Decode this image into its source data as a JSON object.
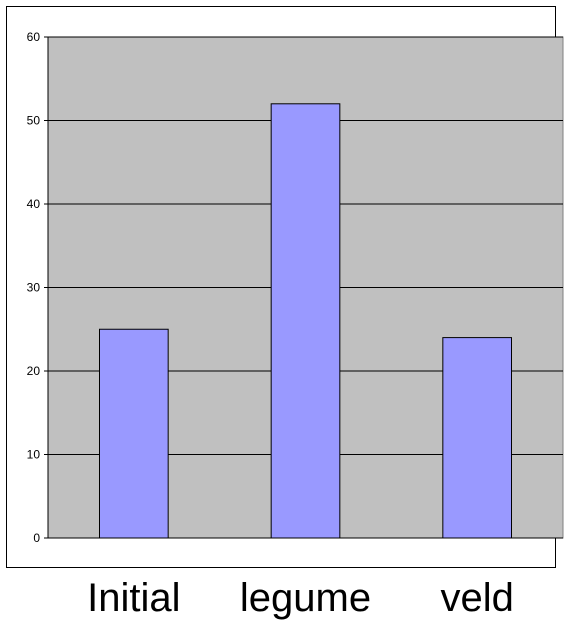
{
  "chart_data": {
    "type": "bar",
    "categories": [
      "Initial",
      "legume",
      "veld"
    ],
    "values": [
      25,
      52,
      24
    ],
    "title": "",
    "xlabel": "",
    "ylabel": "",
    "ylim": [
      0,
      60
    ],
    "yticks": [
      0,
      10,
      20,
      30,
      40,
      50,
      60
    ],
    "grid": true,
    "legend": "none",
    "colors": {
      "bar_fill": "#9999ff",
      "bar_stroke": "#000000",
      "plot_background": "#c0c0c0",
      "gridline": "#000000"
    }
  }
}
